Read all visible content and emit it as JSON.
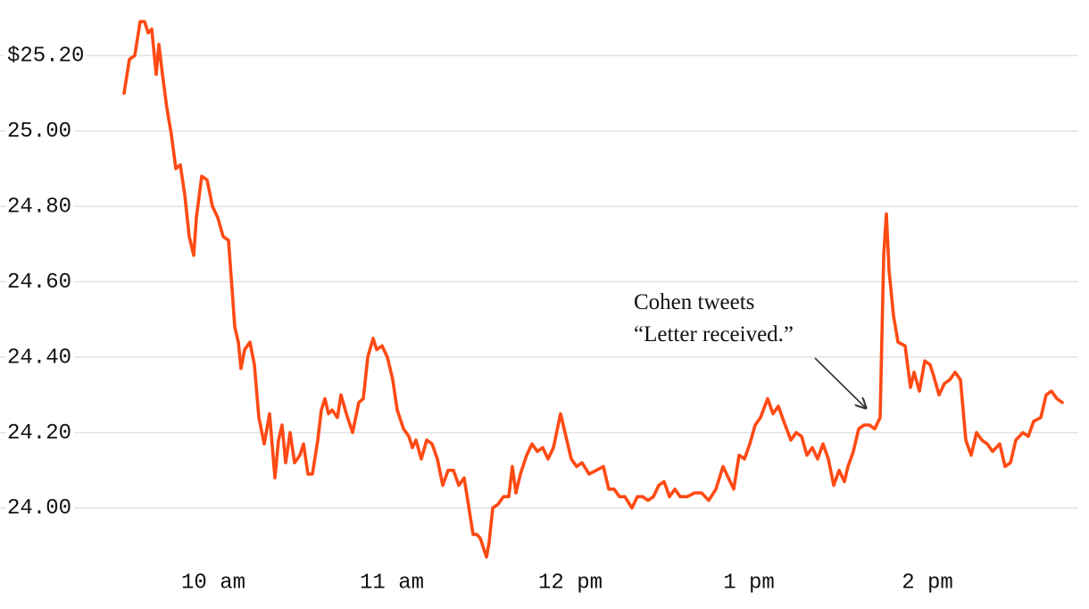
{
  "chart_data": {
    "type": "line",
    "x": [
      570,
      571.8,
      573.6,
      575.4,
      576.9,
      578.1,
      579.3,
      580.8,
      581.7,
      582.9,
      584.4,
      585.9,
      587.4,
      588.9,
      590.4,
      591.9,
      593.4,
      594.3,
      596.1,
      597.9,
      599.7,
      601.5,
      603.3,
      605.1,
      606.3,
      607.2,
      608.4,
      609.3,
      610.5,
      612.3,
      613.8,
      615.3,
      617.1,
      618.9,
      620.7,
      621.9,
      623.1,
      624.3,
      625.8,
      627.3,
      629.1,
      630.3,
      631.8,
      633.3,
      635.1,
      636.3,
      637.5,
      638.7,
      639.9,
      641.7,
      642.9,
      644.7,
      646.8,
      648.9,
      650.4,
      651.9,
      653.7,
      654.9,
      656.7,
      658.5,
      660.3,
      661.8,
      663.9,
      665.7,
      666.9,
      668.1,
      669.9,
      671.7,
      673.5,
      675.3,
      677.1,
      678.9,
      680.7,
      682.5,
      684.3,
      686.1,
      687.3,
      688.5,
      689.7,
      691.8,
      692.7,
      693.9,
      695.7,
      697.5,
      699.3,
      700.5,
      701.7,
      703.2,
      705.3,
      707.1,
      708.9,
      710.7,
      712.5,
      714.3,
      716.7,
      718.5,
      720.3,
      722.1,
      723.9,
      726.3,
      728.7,
      731.1,
      732.9,
      734.7,
      736.5,
      738.3,
      740.7,
      742.5,
      744.3,
      746.1,
      747.9,
      749.7,
      751.5,
      753.3,
      755.1,
      756.9,
      759.3,
      761.7,
      764.1,
      766.5,
      768.9,
      771.3,
      773.1,
      774.9,
      776.7,
      778.5,
      780.3,
      782.1,
      783.9,
      786.3,
      788.1,
      789.9,
      791.7,
      794.1,
      795.9,
      797.7,
      799.5,
      801.3,
      803.1,
      804.9,
      806.7,
      808.5,
      810.3,
      812.1,
      813.3,
      815.1,
      816.9,
      818.7,
      820.5,
      822.3,
      824.1,
      825.3,
      826.2,
      827.1,
      828.6,
      830.1,
      832.5,
      834.3,
      835.5,
      837.3,
      839.1,
      840.9,
      842.1,
      843.9,
      845.7,
      847.5,
      849.3,
      851.1,
      852.9,
      854.7,
      856.5,
      858.3,
      860.1,
      861.9,
      864.3,
      866.1,
      867.9,
      869.7,
      872.1,
      873.9,
      875.7,
      878.1,
      879.9,
      881.7,
      883.5,
      885.3
    ],
    "series": [
      {
        "color": "#ff4a14",
        "values": [
          25.1,
          25.19,
          25.2,
          25.29,
          25.29,
          25.26,
          25.27,
          25.15,
          25.23,
          25.15,
          25.06,
          24.99,
          24.9,
          24.91,
          24.83,
          24.72,
          24.67,
          24.77,
          24.88,
          24.87,
          24.8,
          24.77,
          24.72,
          24.71,
          24.58,
          24.48,
          24.44,
          24.37,
          24.42,
          24.44,
          24.38,
          24.24,
          24.17,
          24.25,
          24.08,
          24.18,
          24.22,
          24.12,
          24.2,
          24.12,
          24.14,
          24.17,
          24.09,
          24.09,
          24.18,
          24.26,
          24.29,
          24.25,
          24.26,
          24.24,
          24.3,
          24.25,
          24.2,
          24.28,
          24.29,
          24.4,
          24.45,
          24.42,
          24.43,
          24.4,
          24.34,
          24.26,
          24.21,
          24.19,
          24.16,
          24.18,
          24.13,
          24.18,
          24.17,
          24.13,
          24.06,
          24.1,
          24.1,
          24.06,
          24.08,
          23.99,
          23.93,
          23.93,
          23.92,
          23.87,
          23.91,
          24.0,
          24.01,
          24.03,
          24.03,
          24.11,
          24.04,
          24.09,
          24.14,
          24.17,
          24.15,
          24.16,
          24.13,
          24.16,
          24.25,
          24.19,
          24.13,
          24.11,
          24.12,
          24.09,
          24.1,
          24.11,
          24.05,
          24.05,
          24.03,
          24.03,
          24.0,
          24.03,
          24.03,
          24.02,
          24.03,
          24.06,
          24.07,
          24.03,
          24.05,
          24.03,
          24.03,
          24.04,
          24.04,
          24.02,
          24.05,
          24.11,
          24.08,
          24.05,
          24.14,
          24.13,
          24.17,
          24.22,
          24.24,
          24.29,
          24.25,
          24.27,
          24.23,
          24.18,
          24.2,
          24.19,
          24.14,
          24.16,
          24.13,
          24.17,
          24.13,
          24.06,
          24.1,
          24.07,
          24.11,
          24.15,
          24.21,
          24.22,
          24.22,
          24.21,
          24.24,
          24.67,
          24.78,
          24.63,
          24.51,
          24.44,
          24.43,
          24.32,
          24.36,
          24.31,
          24.39,
          24.38,
          24.35,
          24.3,
          24.33,
          24.34,
          24.36,
          24.34,
          24.18,
          24.14,
          24.2,
          24.18,
          24.17,
          24.15,
          24.17,
          24.11,
          24.12,
          24.18,
          24.2,
          24.19,
          24.23,
          24.24,
          24.3,
          24.31,
          24.29,
          24.28
        ]
      }
    ],
    "xlim": [
      567.3,
      890.7
    ],
    "xticks": [
      {
        "value": 600,
        "label": "10 am"
      },
      {
        "value": 660,
        "label": "11 am"
      },
      {
        "value": 720,
        "label": "12 pm"
      },
      {
        "value": 780,
        "label": "1 pm"
      },
      {
        "value": 840,
        "label": "2 pm"
      }
    ],
    "ylim": [
      23.86,
      25.3
    ],
    "yticks": [
      {
        "value": 24,
        "label": "24.00"
      },
      {
        "value": 24.2,
        "label": "24.20"
      },
      {
        "value": 24.4,
        "label": "24.40"
      },
      {
        "value": 24.6,
        "label": "24.60"
      },
      {
        "value": 24.8,
        "label": "24.80"
      },
      {
        "value": 25,
        "label": "25.00"
      },
      {
        "value": 25.2,
        "label": "$25.20"
      }
    ],
    "grid": true,
    "annotation": [
      "Cohen tweets",
      "“Letter received.”"
    ]
  }
}
